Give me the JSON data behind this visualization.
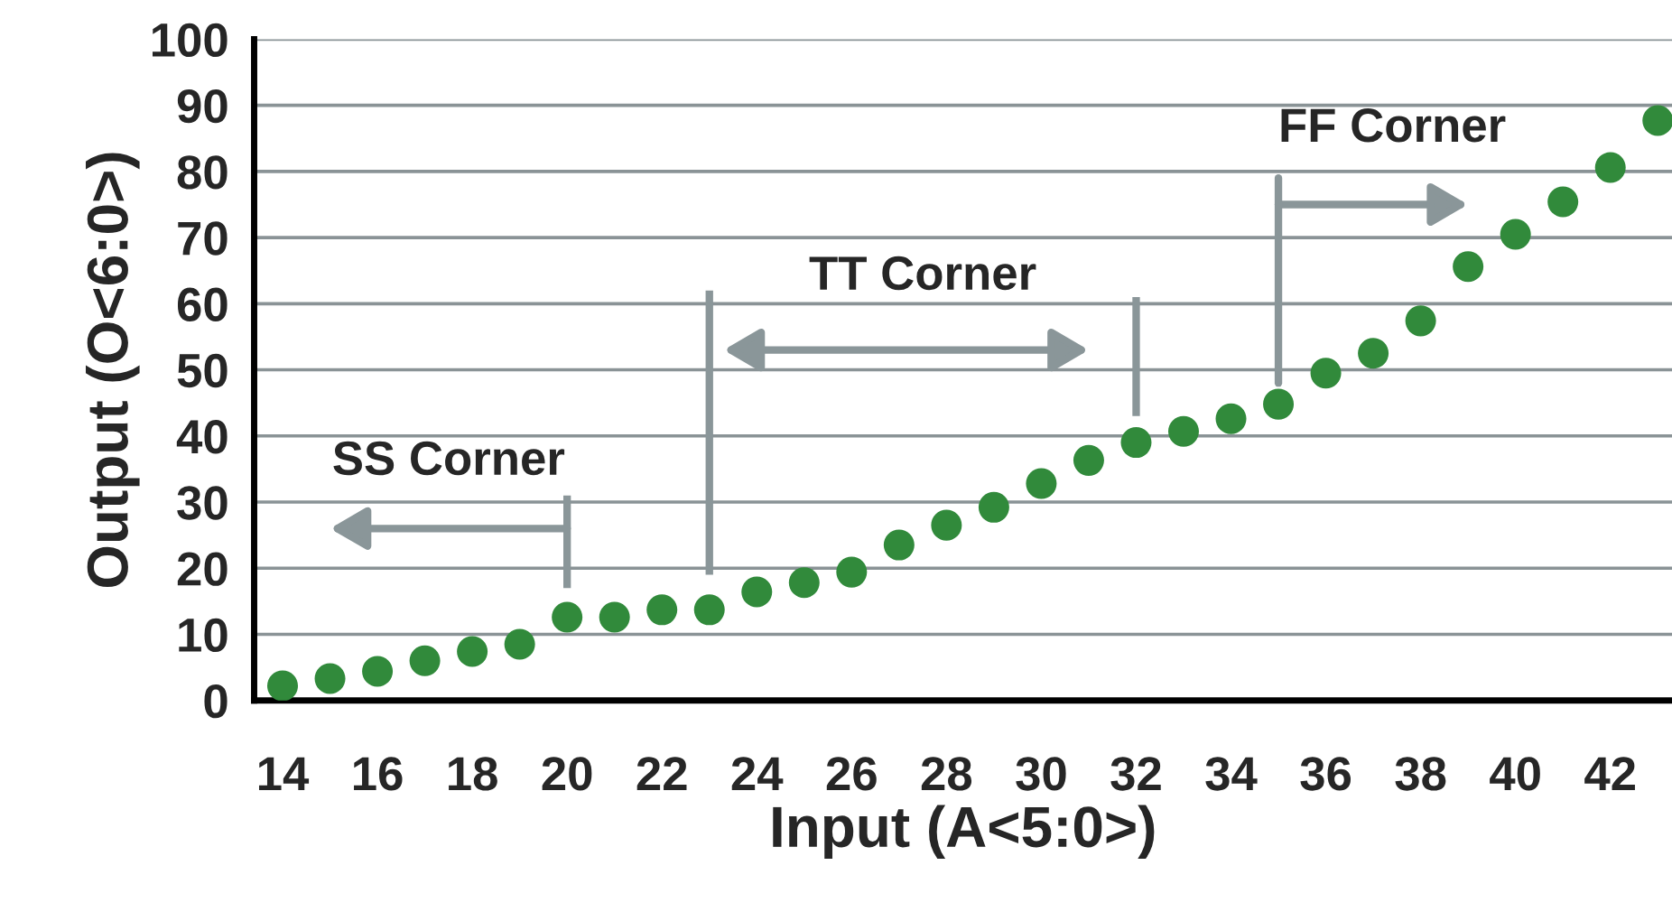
{
  "chart_data": {
    "type": "scatter",
    "xlabel": "Input (A<5:0>)",
    "ylabel": "Output (O<6:0>)",
    "x": [
      14,
      15,
      16,
      17,
      18,
      19,
      20,
      21,
      22,
      23,
      24,
      25,
      26,
      27,
      28,
      29,
      30,
      31,
      32,
      33,
      34,
      35,
      36,
      37,
      38,
      39,
      40,
      41,
      42,
      43
    ],
    "series": [
      {
        "color": "#318a3b",
        "values": [
          2.2,
          3.3,
          4.4,
          6,
          7.4,
          8.5,
          12.6,
          12.6,
          13.7,
          13.7,
          16.4,
          17.8,
          19.4,
          23.5,
          26.5,
          29.2,
          32.8,
          36.3,
          39,
          40.7,
          42.6,
          44.8,
          49.5,
          52.5,
          57.4,
          65.6,
          70.5,
          75.4,
          80.6,
          87.7
        ]
      }
    ],
    "xlim": [
      13.4,
      43.3
    ],
    "ylim": [
      0,
      100
    ],
    "xticks": [
      14,
      16,
      18,
      20,
      22,
      24,
      26,
      28,
      30,
      32,
      34,
      36,
      38,
      40,
      42
    ],
    "yticks": [
      0,
      10,
      20,
      30,
      40,
      50,
      60,
      70,
      80,
      90,
      100
    ],
    "grid": "y",
    "marker": "circle",
    "annotations": [
      "SS Corner",
      "TT Corner",
      {
        "text": "FF Corner",
        "x": 35,
        "y": 48
      }
    ]
  }
}
